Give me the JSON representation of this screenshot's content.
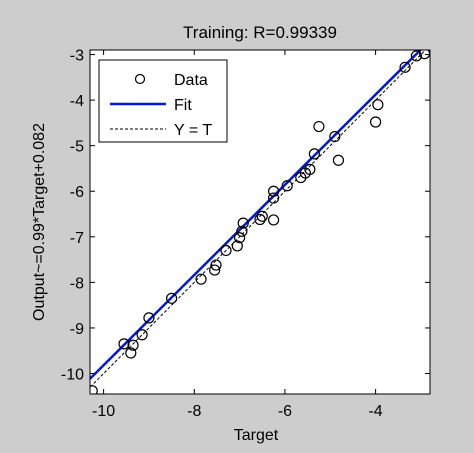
{
  "chart_data": {
    "type": "scatter",
    "title": "Training: R=0.99339",
    "xlabel": "Target",
    "ylabel": "Output~=0.99*Target+0.082",
    "xlim": [
      -10.3,
      -2.8
    ],
    "ylim": [
      -10.45,
      -2.9
    ],
    "xticks": [
      -10,
      -8,
      -6,
      -4
    ],
    "yticks": [
      -10,
      -9,
      -8,
      -7,
      -6,
      -5,
      -4,
      -3
    ],
    "grid": false,
    "legend_position": "top-left",
    "legend": {
      "data": "Data",
      "fit": "Fit",
      "identity": "Y = T"
    },
    "colors": {
      "background": "#cdcdcd",
      "plot_area": "#ffffff",
      "fit": "#0018d8",
      "data": "#000000",
      "identity": "#000000"
    },
    "fit": {
      "slope": 0.99,
      "intercept": 0.082
    },
    "points": [
      {
        "x": -10.25,
        "y": -10.38
      },
      {
        "x": -9.55,
        "y": -9.35
      },
      {
        "x": -9.4,
        "y": -9.55
      },
      {
        "x": -9.35,
        "y": -9.38
      },
      {
        "x": -9.15,
        "y": -9.15
      },
      {
        "x": -9.0,
        "y": -8.78
      },
      {
        "x": -8.5,
        "y": -8.35
      },
      {
        "x": -7.85,
        "y": -7.93
      },
      {
        "x": -7.55,
        "y": -7.73
      },
      {
        "x": -7.52,
        "y": -7.62
      },
      {
        "x": -7.3,
        "y": -7.3
      },
      {
        "x": -7.05,
        "y": -7.2
      },
      {
        "x": -7.0,
        "y": -7.02
      },
      {
        "x": -6.95,
        "y": -6.88
      },
      {
        "x": -6.92,
        "y": -6.7
      },
      {
        "x": -6.55,
        "y": -6.62
      },
      {
        "x": -6.5,
        "y": -6.55
      },
      {
        "x": -6.25,
        "y": -6.63
      },
      {
        "x": -6.25,
        "y": -6.15
      },
      {
        "x": -6.25,
        "y": -6.0
      },
      {
        "x": -5.95,
        "y": -5.88
      },
      {
        "x": -5.65,
        "y": -5.7
      },
      {
        "x": -5.55,
        "y": -5.6
      },
      {
        "x": -5.45,
        "y": -5.52
      },
      {
        "x": -5.35,
        "y": -5.18
      },
      {
        "x": -5.25,
        "y": -4.58
      },
      {
        "x": -4.9,
        "y": -4.8
      },
      {
        "x": -4.82,
        "y": -5.32
      },
      {
        "x": -4.0,
        "y": -4.48
      },
      {
        "x": -3.95,
        "y": -4.1
      },
      {
        "x": -3.35,
        "y": -3.28
      },
      {
        "x": -3.1,
        "y": -3.03
      },
      {
        "x": -2.92,
        "y": -2.98
      }
    ]
  }
}
